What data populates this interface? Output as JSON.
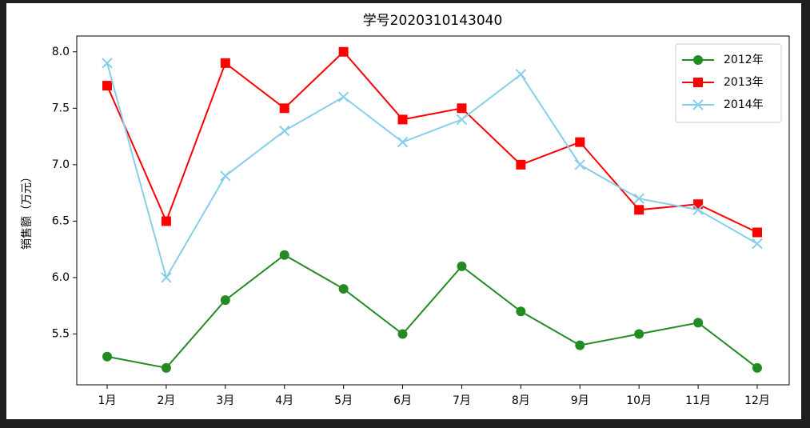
{
  "chart_data": {
    "type": "line",
    "title": "学号2020310143040",
    "y_label": "销售额（万元）",
    "categories": [
      "1月",
      "2月",
      "3月",
      "4月",
      "5月",
      "6月",
      "7月",
      "8月",
      "9月",
      "10月",
      "11月",
      "12月"
    ],
    "series": [
      {
        "name": "2012年",
        "color": "#228b22",
        "marker": "circle",
        "values": [
          5.3,
          5.2,
          5.8,
          6.2,
          5.9,
          5.5,
          6.1,
          5.7,
          5.4,
          5.5,
          5.6,
          5.2
        ]
      },
      {
        "name": "2013年",
        "color": "#ff0000",
        "marker": "square",
        "values": [
          7.7,
          6.5,
          7.9,
          7.5,
          8.0,
          7.4,
          7.5,
          7.0,
          7.2,
          6.6,
          6.65,
          6.4
        ]
      },
      {
        "name": "2014年",
        "color": "#87ceeb",
        "marker": "x",
        "values": [
          7.9,
          6.0,
          6.9,
          7.3,
          7.6,
          7.2,
          7.4,
          7.8,
          7.0,
          6.7,
          6.6,
          6.3
        ]
      }
    ],
    "ylim": [
      5.05,
      8.14
    ],
    "yticks": [
      {
        "value": 5.5,
        "label": "5.5"
      },
      {
        "value": 6.0,
        "label": "6.0"
      },
      {
        "value": 6.5,
        "label": "6.5"
      },
      {
        "value": 7.0,
        "label": "7.0"
      },
      {
        "value": 7.5,
        "label": "7.5"
      },
      {
        "value": 8.0,
        "label": "8.0"
      }
    ],
    "legend": "upper right"
  }
}
